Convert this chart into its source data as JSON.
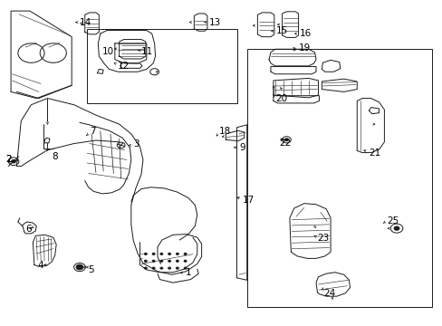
{
  "background_color": "#ffffff",
  "line_color": "#1a1a1a",
  "text_color": "#000000",
  "figsize": [
    4.89,
    3.6
  ],
  "dpi": 100,
  "labels": {
    "1": [
      0.385,
      0.085,
      "left"
    ],
    "2": [
      0.022,
      0.475,
      "left"
    ],
    "3": [
      0.298,
      0.538,
      "left"
    ],
    "4": [
      0.085,
      0.185,
      "left"
    ],
    "5": [
      0.198,
      0.168,
      "left"
    ],
    "6": [
      0.058,
      0.295,
      "left"
    ],
    "7": [
      0.198,
      0.598,
      "left"
    ],
    "8": [
      0.115,
      0.518,
      "left"
    ],
    "9": [
      0.548,
      0.548,
      "left"
    ],
    "10": [
      0.278,
      0.845,
      "left"
    ],
    "11": [
      0.318,
      0.845,
      "left"
    ],
    "12": [
      0.268,
      0.788,
      "left"
    ],
    "13": [
      0.468,
      0.928,
      "left"
    ],
    "14": [
      0.195,
      0.928,
      "left"
    ],
    "15": [
      0.628,
      0.905,
      "left"
    ],
    "16": [
      0.728,
      0.895,
      "left"
    ],
    "17": [
      0.548,
      0.385,
      "left"
    ],
    "18": [
      0.548,
      0.595,
      "left"
    ],
    "19": [
      0.678,
      0.848,
      "left"
    ],
    "20": [
      0.635,
      0.688,
      "left"
    ],
    "21": [
      0.838,
      0.528,
      "left"
    ],
    "22": [
      0.638,
      0.558,
      "left"
    ],
    "23": [
      0.718,
      0.268,
      "left"
    ],
    "24": [
      0.738,
      0.098,
      "left"
    ],
    "25": [
      0.878,
      0.318,
      "left"
    ]
  }
}
